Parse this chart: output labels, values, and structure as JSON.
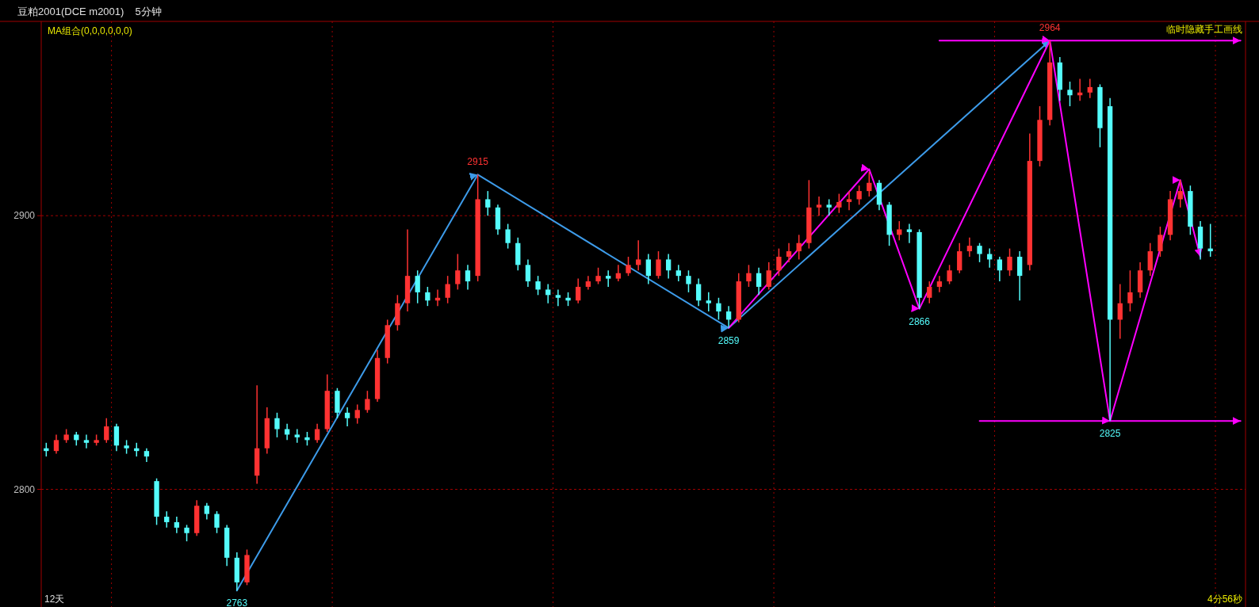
{
  "chart_data": {
    "type": "candlestick",
    "title": "豆粕2001(DCE m2001)",
    "subtitle": "5分钟",
    "annotations": [
      "MA组合(0,0,0,0,0,0)",
      "临时隐藏手工画线",
      "12天",
      "4分56秒",
      {
        "text": "2915",
        "y": 2915
      },
      {
        "text": "2964",
        "y": 2964
      },
      {
        "text": "2763",
        "y": 2763
      },
      {
        "text": "2859",
        "y": 2859
      },
      {
        "text": "2866",
        "y": 2866
      },
      {
        "text": "2825",
        "y": 2825
      }
    ],
    "categories": [
      null,
      null,
      null,
      null,
      null,
      null,
      null,
      null,
      null,
      null,
      null,
      null,
      null,
      null,
      null,
      null,
      null,
      null,
      null,
      null,
      null,
      null,
      null,
      null,
      null,
      null,
      null,
      null,
      null,
      null,
      null,
      null,
      null,
      null,
      null,
      null,
      null,
      null,
      null,
      null,
      null,
      null,
      null,
      null,
      null,
      null,
      null,
      null,
      null,
      null,
      null,
      null,
      null,
      null,
      null,
      null,
      null,
      null,
      null,
      null,
      null,
      null,
      null,
      null,
      null,
      null,
      null,
      null,
      null,
      null,
      null,
      null,
      null,
      null,
      null,
      null,
      null,
      null,
      null,
      null,
      null,
      null,
      null,
      null,
      null,
      null,
      null,
      null,
      null,
      null,
      null,
      null,
      null,
      null,
      null,
      null,
      null,
      null,
      null,
      null,
      null,
      null,
      null,
      null,
      null,
      null,
      null,
      null,
      null,
      null,
      null,
      null,
      null,
      null,
      null,
      null,
      null,
      null,
      null,
      null
    ],
    "ohlc": [
      [
        2815,
        2817,
        2812,
        2814
      ],
      [
        2814,
        2820,
        2813,
        2818
      ],
      [
        2818,
        2822,
        2817,
        2820
      ],
      [
        2820,
        2821,
        2816,
        2818
      ],
      [
        2818,
        2820,
        2815,
        2817
      ],
      [
        2817,
        2820,
        2816,
        2818
      ],
      [
        2818,
        2826,
        2817,
        2823
      ],
      [
        2823,
        2824,
        2814,
        2816
      ],
      [
        2816,
        2818,
        2813,
        2815
      ],
      [
        2815,
        2817,
        2812,
        2814
      ],
      [
        2814,
        2815,
        2810,
        2812
      ],
      [
        2803,
        2804,
        2787,
        2790
      ],
      [
        2790,
        2792,
        2786,
        2788
      ],
      [
        2788,
        2790,
        2784,
        2786
      ],
      [
        2786,
        2787,
        2781,
        2784
      ],
      [
        2784,
        2796,
        2783,
        2794
      ],
      [
        2794,
        2795,
        2789,
        2791
      ],
      [
        2791,
        2792,
        2784,
        2786
      ],
      [
        2786,
        2787,
        2772,
        2775
      ],
      [
        2775,
        2777,
        2763,
        2766
      ],
      [
        2766,
        2778,
        2765,
        2776
      ],
      [
        2805,
        2838,
        2802,
        2815
      ],
      [
        2815,
        2830,
        2813,
        2826
      ],
      [
        2826,
        2828,
        2819,
        2822
      ],
      [
        2822,
        2824,
        2818,
        2820
      ],
      [
        2820,
        2822,
        2817,
        2819
      ],
      [
        2819,
        2821,
        2816,
        2818
      ],
      [
        2818,
        2824,
        2817,
        2822
      ],
      [
        2822,
        2842,
        2821,
        2836
      ],
      [
        2836,
        2837,
        2826,
        2828
      ],
      [
        2828,
        2830,
        2823,
        2826
      ],
      [
        2826,
        2831,
        2824,
        2829
      ],
      [
        2829,
        2836,
        2828,
        2833
      ],
      [
        2833,
        2851,
        2832,
        2848
      ],
      [
        2848,
        2862,
        2846,
        2860
      ],
      [
        2860,
        2871,
        2858,
        2868
      ],
      [
        2868,
        2895,
        2865,
        2878
      ],
      [
        2878,
        2880,
        2868,
        2872
      ],
      [
        2872,
        2874,
        2867,
        2869
      ],
      [
        2869,
        2873,
        2867,
        2870
      ],
      [
        2870,
        2878,
        2868,
        2875
      ],
      [
        2875,
        2886,
        2873,
        2880
      ],
      [
        2880,
        2882,
        2873,
        2876
      ],
      [
        2878,
        2915,
        2876,
        2906
      ],
      [
        2906,
        2909,
        2900,
        2903
      ],
      [
        2903,
        2904,
        2893,
        2895
      ],
      [
        2895,
        2897,
        2888,
        2890
      ],
      [
        2890,
        2892,
        2880,
        2882
      ],
      [
        2882,
        2884,
        2874,
        2876
      ],
      [
        2876,
        2878,
        2871,
        2873
      ],
      [
        2873,
        2875,
        2868,
        2871
      ],
      [
        2871,
        2873,
        2867,
        2870
      ],
      [
        2870,
        2872,
        2867,
        2869
      ],
      [
        2869,
        2877,
        2868,
        2874
      ],
      [
        2874,
        2878,
        2873,
        2876
      ],
      [
        2876,
        2881,
        2875,
        2878
      ],
      [
        2878,
        2880,
        2874,
        2877
      ],
      [
        2877,
        2882,
        2876,
        2879
      ],
      [
        2879,
        2885,
        2878,
        2882
      ],
      [
        2882,
        2891,
        2880,
        2884
      ],
      [
        2884,
        2886,
        2875,
        2878
      ],
      [
        2878,
        2887,
        2877,
        2884
      ],
      [
        2884,
        2886,
        2877,
        2880
      ],
      [
        2880,
        2882,
        2876,
        2878
      ],
      [
        2878,
        2880,
        2872,
        2875
      ],
      [
        2875,
        2877,
        2867,
        2869
      ],
      [
        2869,
        2872,
        2865,
        2868
      ],
      [
        2868,
        2870,
        2862,
        2865
      ],
      [
        2865,
        2867,
        2859,
        2862
      ],
      [
        2862,
        2879,
        2861,
        2876
      ],
      [
        2876,
        2882,
        2874,
        2879
      ],
      [
        2879,
        2881,
        2871,
        2874
      ],
      [
        2874,
        2883,
        2873,
        2880
      ],
      [
        2880,
        2888,
        2878,
        2885
      ],
      [
        2885,
        2890,
        2883,
        2887
      ],
      [
        2887,
        2893,
        2884,
        2890
      ],
      [
        2890,
        2913,
        2888,
        2903
      ],
      [
        2903,
        2907,
        2900,
        2904
      ],
      [
        2904,
        2906,
        2900,
        2903
      ],
      [
        2903,
        2908,
        2901,
        2905
      ],
      [
        2905,
        2909,
        2902,
        2906
      ],
      [
        2906,
        2911,
        2904,
        2909
      ],
      [
        2909,
        2916,
        2907,
        2912
      ],
      [
        2912,
        2913,
        2902,
        2904
      ],
      [
        2904,
        2905,
        2889,
        2893
      ],
      [
        2893,
        2898,
        2891,
        2895
      ],
      [
        2895,
        2897,
        2890,
        2894
      ],
      [
        2894,
        2895,
        2866,
        2870
      ],
      [
        2870,
        2876,
        2868,
        2874
      ],
      [
        2874,
        2878,
        2872,
        2876
      ],
      [
        2876,
        2882,
        2875,
        2880
      ],
      [
        2880,
        2890,
        2879,
        2887
      ],
      [
        2887,
        2892,
        2885,
        2889
      ],
      [
        2889,
        2890,
        2883,
        2886
      ],
      [
        2886,
        2888,
        2881,
        2884
      ],
      [
        2884,
        2885,
        2876,
        2880
      ],
      [
        2880,
        2888,
        2878,
        2885
      ],
      [
        2885,
        2887,
        2869,
        2878
      ],
      [
        2882,
        2930,
        2880,
        2920
      ],
      [
        2920,
        2940,
        2918,
        2935
      ],
      [
        2935,
        2964,
        2933,
        2956
      ],
      [
        2956,
        2958,
        2942,
        2946
      ],
      [
        2946,
        2949,
        2940,
        2944
      ],
      [
        2944,
        2950,
        2942,
        2945
      ],
      [
        2945,
        2950,
        2943,
        2947
      ],
      [
        2947,
        2948,
        2925,
        2932
      ],
      [
        2940,
        2943,
        2825,
        2862
      ],
      [
        2862,
        2875,
        2855,
        2868
      ],
      [
        2868,
        2880,
        2865,
        2872
      ],
      [
        2872,
        2883,
        2870,
        2880
      ],
      [
        2880,
        2890,
        2878,
        2887
      ],
      [
        2887,
        2896,
        2885,
        2893
      ],
      [
        2893,
        2909,
        2891,
        2906
      ],
      [
        2906,
        2913,
        2903,
        2909
      ],
      [
        2909,
        2911,
        2893,
        2896
      ],
      [
        2896,
        2898,
        2884,
        2888
      ],
      [
        2888,
        2897,
        2885,
        2887
      ],
      null,
      null,
      null
    ],
    "colors": [
      "#54fcfc",
      "#ff3232",
      "#ff3232",
      "#54fcfc",
      "#54fcfc",
      "#ff3232",
      "#ff3232",
      "#54fcfc",
      "#54fcfc",
      "#54fcfc",
      "#54fcfc",
      "#54fcfc",
      "#54fcfc",
      "#54fcfc",
      "#54fcfc",
      "#ff3232",
      "#54fcfc",
      "#54fcfc",
      "#54fcfc",
      "#54fcfc",
      "#ff3232",
      "#ff3232",
      "#ff3232",
      "#54fcfc",
      "#54fcfc",
      "#54fcfc",
      "#54fcfc",
      "#ff3232",
      "#ff3232",
      "#54fcfc",
      "#54fcfc",
      "#ff3232",
      "#ff3232",
      "#ff3232",
      "#ff3232",
      "#ff3232",
      "#ff3232",
      "#54fcfc",
      "#54fcfc",
      "#ff3232",
      "#ff3232",
      "#ff3232",
      "#54fcfc",
      "#ff3232",
      "#54fcfc",
      "#54fcfc",
      "#54fcfc",
      "#54fcfc",
      "#54fcfc",
      "#54fcfc",
      "#54fcfc",
      "#54fcfc",
      "#54fcfc",
      "#ff3232",
      "#ff3232",
      "#ff3232",
      "#54fcfc",
      "#ff3232",
      "#ff3232",
      "#ff3232",
      "#54fcfc",
      "#ff3232",
      "#54fcfc",
      "#54fcfc",
      "#54fcfc",
      "#54fcfc",
      "#54fcfc",
      "#54fcfc",
      "#54fcfc",
      "#ff3232",
      "#ff3232",
      "#54fcfc",
      "#ff3232",
      "#ff3232",
      "#ff3232",
      "#ff3232",
      "#ff3232",
      "#ff3232",
      "#54fcfc",
      "#ff3232",
      "#ff3232",
      "#ff3232",
      "#ff3232",
      "#54fcfc",
      "#54fcfc",
      "#ff3232",
      "#54fcfc",
      "#54fcfc",
      "#ff3232",
      "#ff3232",
      "#ff3232",
      "#ff3232",
      "#ff3232",
      "#54fcfc",
      "#54fcfc",
      "#54fcfc",
      "#ff3232",
      "#54fcfc",
      "#ff3232",
      "#ff3232",
      "#ff3232",
      "#54fcfc",
      "#54fcfc",
      "#ff3232",
      "#ff3232",
      "#54fcfc",
      "#54fcfc",
      "#ff3232",
      "#ff3232",
      "#ff3232",
      "#ff3232",
      "#ff3232",
      "#ff3232",
      "#ff3232",
      "#54fcfc",
      "#54fcfc",
      "#54fcfc",
      null,
      null,
      null
    ],
    "ylim": [
      2757,
      2971
    ],
    "yticks": [
      2800,
      2900
    ],
    "tick_labels": "y",
    "grid": true,
    "series": [
      {
        "type": "line",
        "color": "#3d9be9",
        "values": [
          null,
          null,
          null,
          null,
          null,
          null,
          null,
          null,
          null,
          null,
          null,
          null,
          null,
          null,
          null,
          null,
          null,
          null,
          null,
          2763,
          null,
          null,
          null,
          null,
          null,
          null,
          null,
          null,
          null,
          null,
          null,
          null,
          null,
          null,
          null,
          null,
          null,
          null,
          null,
          null,
          null,
          null,
          null,
          2915,
          null,
          null,
          null,
          null,
          null,
          null,
          null,
          null,
          null,
          null,
          null,
          null,
          null,
          null,
          null,
          null,
          null,
          null,
          null,
          null,
          null,
          null,
          null,
          null,
          2859,
          null,
          null,
          null,
          null,
          null,
          null,
          null,
          null,
          null,
          null,
          null,
          null,
          null,
          null,
          null,
          null,
          null,
          null,
          null,
          null,
          null,
          null,
          null,
          null,
          null,
          null,
          null,
          null,
          null,
          null,
          null,
          2964,
          null,
          null,
          null,
          null,
          null,
          null,
          null,
          null,
          null,
          null,
          null,
          null,
          null,
          null,
          null,
          null,
          null,
          null,
          null
        ]
      },
      {
        "type": "line",
        "color": "#ff00ff",
        "values": [
          null,
          null,
          null,
          null,
          null,
          null,
          null,
          null,
          null,
          null,
          null,
          null,
          null,
          null,
          null,
          null,
          null,
          null,
          null,
          null,
          null,
          null,
          null,
          null,
          null,
          null,
          null,
          null,
          null,
          null,
          null,
          null,
          null,
          null,
          null,
          null,
          null,
          null,
          null,
          null,
          null,
          null,
          null,
          null,
          null,
          null,
          null,
          null,
          null,
          null,
          null,
          null,
          null,
          null,
          null,
          null,
          null,
          null,
          null,
          null,
          null,
          null,
          null,
          null,
          null,
          null,
          null,
          null,
          2859,
          null,
          null,
          null,
          null,
          null,
          null,
          null,
          null,
          null,
          null,
          null,
          null,
          null,
          2917,
          null,
          null,
          null,
          null,
          2866,
          null,
          null,
          null,
          null,
          null,
          null,
          null,
          null,
          null,
          null,
          null,
          null,
          2964,
          null,
          null,
          null,
          null,
          null,
          2825,
          null,
          null,
          null,
          null,
          null,
          null,
          2913,
          null,
          2885,
          null,
          null,
          null,
          null
        ]
      },
      {
        "type": "line",
        "color": "#ff00ff",
        "values": [
          null,
          null,
          null,
          null,
          null,
          null,
          null,
          null,
          null,
          null,
          null,
          null,
          null,
          null,
          null,
          null,
          null,
          null,
          null,
          null,
          null,
          null,
          null,
          null,
          null,
          null,
          null,
          null,
          null,
          null,
          null,
          null,
          null,
          null,
          null,
          null,
          null,
          null,
          null,
          null,
          null,
          null,
          null,
          null,
          null,
          null,
          null,
          null,
          null,
          null,
          null,
          null,
          null,
          null,
          null,
          null,
          null,
          null,
          null,
          null,
          null,
          null,
          null,
          null,
          null,
          null,
          null,
          null,
          null,
          null,
          null,
          null,
          null,
          null,
          null,
          null,
          null,
          null,
          null,
          null,
          null,
          null,
          null,
          null,
          null,
          null,
          null,
          null,
          null,
          2964,
          null,
          null,
          null,
          null,
          null,
          null,
          null,
          null,
          null,
          null,
          null,
          null,
          null,
          null,
          null,
          null,
          null,
          null,
          null,
          null,
          null,
          null,
          null,
          null,
          null,
          null,
          null,
          null,
          null,
          2964
        ]
      },
      {
        "type": "line",
        "color": "#ff00ff",
        "values": [
          null,
          null,
          null,
          null,
          null,
          null,
          null,
          null,
          null,
          null,
          null,
          null,
          null,
          null,
          null,
          null,
          null,
          null,
          null,
          null,
          null,
          null,
          null,
          null,
          null,
          null,
          null,
          null,
          null,
          null,
          null,
          null,
          null,
          null,
          null,
          null,
          null,
          null,
          null,
          null,
          null,
          null,
          null,
          null,
          null,
          null,
          null,
          null,
          null,
          null,
          null,
          null,
          null,
          null,
          null,
          null,
          null,
          null,
          null,
          null,
          null,
          null,
          null,
          null,
          null,
          null,
          null,
          null,
          null,
          null,
          null,
          null,
          null,
          null,
          null,
          null,
          null,
          null,
          null,
          null,
          null,
          null,
          null,
          null,
          null,
          null,
          null,
          null,
          null,
          null,
          null,
          null,
          null,
          2825,
          null,
          null,
          null,
          null,
          null,
          null,
          null,
          null,
          null,
          null,
          null,
          null,
          null,
          null,
          null,
          null,
          null,
          null,
          null,
          null,
          null,
          null,
          null,
          null,
          null,
          2825
        ]
      }
    ]
  }
}
